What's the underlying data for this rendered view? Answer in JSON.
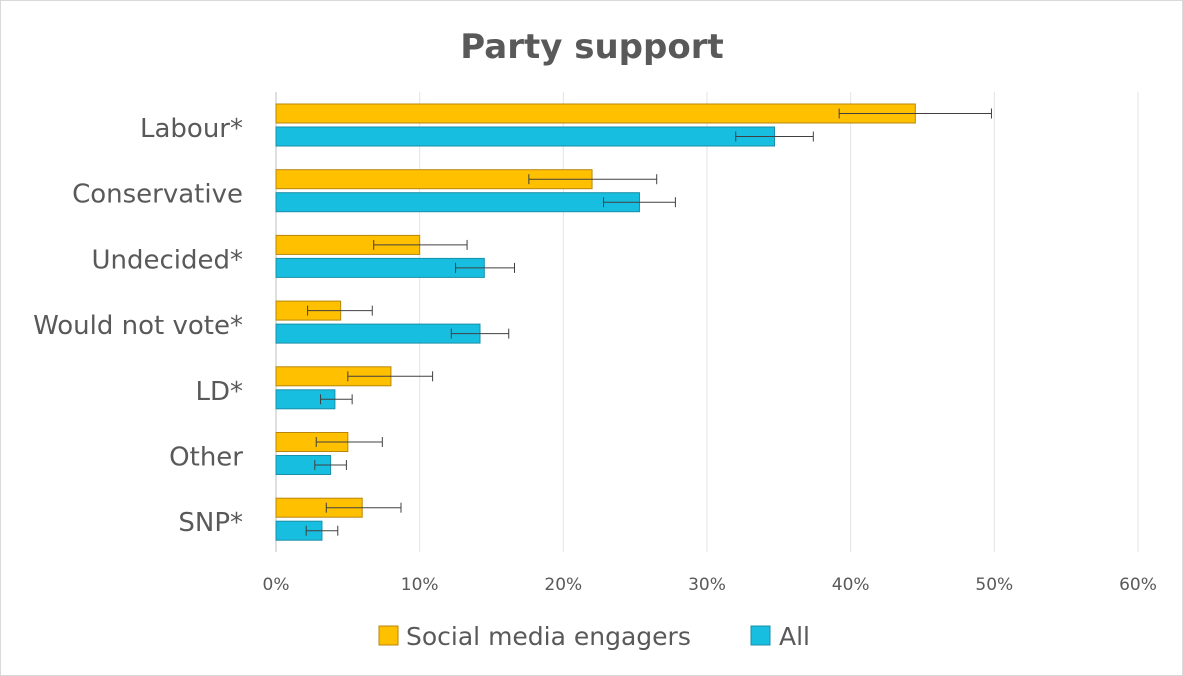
{
  "chart_data": {
    "type": "bar",
    "orientation": "horizontal",
    "title": "Party support",
    "categories": [
      "Labour*",
      "Conservative",
      "Undecided*",
      "Would not vote*",
      "LD*",
      "Other",
      "SNP*"
    ],
    "series": [
      {
        "name": "Social media engagers",
        "color": "#FFC000",
        "values": [
          44.5,
          22,
          10,
          4.5,
          8,
          5,
          6
        ],
        "error_low": [
          39.2,
          17.6,
          6.8,
          2.2,
          5,
          2.8,
          3.5
        ],
        "error_high": [
          49.8,
          26.5,
          13.3,
          6.7,
          10.9,
          7.4,
          8.7
        ]
      },
      {
        "name": "All",
        "color": "#17BEE0",
        "values": [
          34.7,
          25.3,
          14.5,
          14.2,
          4.1,
          3.8,
          3.2
        ],
        "error_low": [
          32,
          22.8,
          12.5,
          12.2,
          3.1,
          2.7,
          2.1
        ],
        "error_high": [
          37.4,
          27.8,
          16.6,
          16.2,
          5.3,
          4.9,
          4.3
        ]
      }
    ],
    "x_ticks": [
      "0%",
      "10%",
      "20%",
      "30%",
      "40%",
      "50%",
      "60%"
    ],
    "xlim": [
      0,
      60
    ],
    "grid": true,
    "legend_position": "bottom"
  }
}
